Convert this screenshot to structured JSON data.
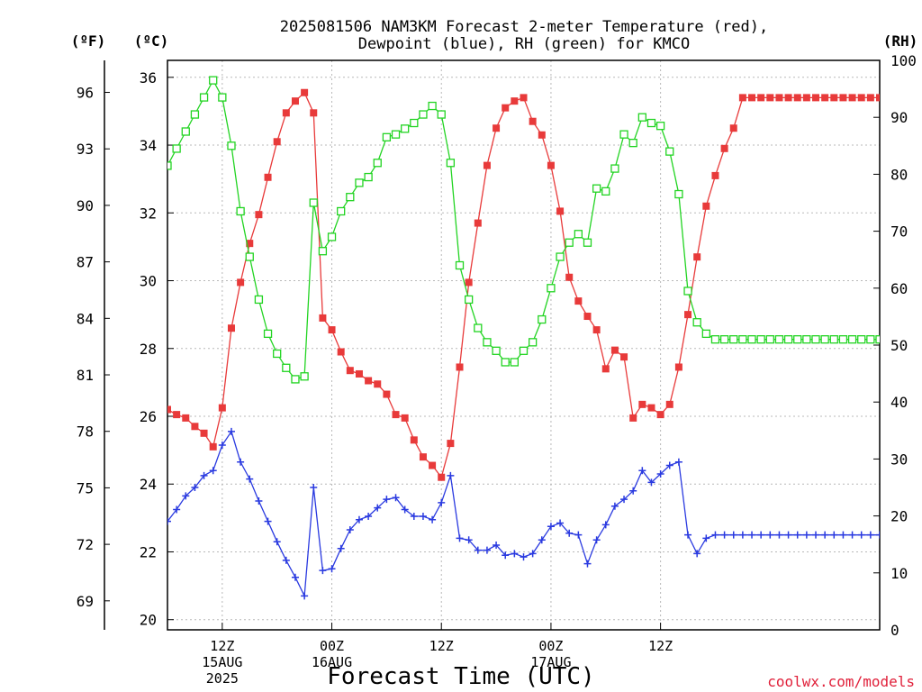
{
  "title_line1": "2025081506 NAM3KM Forecast 2-meter Temperature (red),",
  "title_line2": "Dewpoint (blue), RH (green) for KMCO",
  "unit_f": "(ºF)",
  "unit_c": "(ºC)",
  "unit_rh": "(RH)",
  "xlabel": "Forecast Time (UTC)",
  "credit": "coolwx.com/models",
  "colors": {
    "temperature": "#e83a3a",
    "dewpoint": "#2a3ae0",
    "rh": "#22d422",
    "credit": "#e0203a"
  },
  "chart_data": {
    "type": "line",
    "x_unit": "forecast hour",
    "x": [
      6,
      7,
      8,
      9,
      10,
      11,
      12,
      13,
      14,
      15,
      16,
      17,
      18,
      19,
      20,
      21,
      22,
      23,
      24,
      25,
      26,
      27,
      28,
      29,
      30,
      31,
      32,
      33,
      34,
      35,
      36,
      37,
      38,
      39,
      40,
      41,
      42,
      43,
      44,
      45,
      46,
      47,
      48,
      49,
      50,
      51,
      52,
      53,
      54,
      55,
      56,
      57,
      58,
      59,
      60,
      61,
      62,
      63,
      64,
      65,
      66,
      67,
      68,
      69,
      70,
      71,
      72,
      73,
      74,
      75,
      76,
      77,
      78,
      79,
      80,
      81,
      82,
      83,
      84
    ],
    "xlim": [
      6,
      84
    ],
    "x_ticks": [
      {
        "x": 12,
        "lines": [
          "12Z",
          "15AUG",
          "2025"
        ]
      },
      {
        "x": 24,
        "lines": [
          "00Z",
          "16AUG"
        ]
      },
      {
        "x": 36,
        "lines": [
          "12Z"
        ]
      },
      {
        "x": 48,
        "lines": [
          "00Z",
          "17AUG"
        ]
      },
      {
        "x": 60,
        "lines": [
          "12Z"
        ]
      }
    ],
    "y_left_c": {
      "range": [
        19.7,
        36.5
      ],
      "ticks": [
        20,
        22,
        24,
        26,
        28,
        30,
        32,
        34,
        36
      ]
    },
    "y_left_f": {
      "ticks": [
        69,
        72,
        75,
        78,
        81,
        84,
        87,
        90,
        93,
        96
      ]
    },
    "y_right_rh": {
      "range": [
        0,
        100
      ],
      "ticks": [
        0,
        10,
        20,
        30,
        40,
        50,
        60,
        70,
        80,
        90,
        100
      ]
    },
    "grid": true,
    "series": [
      {
        "key": "temperature",
        "axis": "c",
        "marker": "filled-square",
        "values": [
          26.2,
          26.05,
          25.95,
          25.7,
          25.5,
          25.1,
          26.25,
          28.6,
          29.95,
          31.1,
          31.95,
          33.05,
          34.1,
          34.95,
          35.3,
          35.55,
          34.95,
          28.9,
          28.55,
          27.9,
          27.35,
          27.25,
          27.05,
          26.95,
          26.65,
          26.05,
          25.95,
          25.3,
          24.8,
          24.55,
          24.2,
          25.2,
          27.45,
          29.95,
          31.7,
          33.4,
          34.5,
          35.1,
          35.3,
          35.4,
          34.7,
          34.3,
          33.4,
          32.05,
          30.1,
          29.4,
          28.95,
          28.55,
          27.4,
          27.95,
          27.75,
          25.95,
          26.35,
          26.25,
          26.05,
          26.35,
          27.45,
          29.0,
          30.7,
          32.2,
          33.1,
          33.9,
          34.5,
          35.4,
          35.4,
          35.4,
          35.4,
          35.4,
          35.4,
          35.4,
          35.4,
          35.4,
          35.4,
          35.4,
          35.4,
          35.4,
          35.4,
          35.4,
          35.4
        ]
      },
      {
        "key": "dewpoint",
        "axis": "c",
        "marker": "plus",
        "values": [
          22.9,
          23.25,
          23.65,
          23.9,
          24.25,
          24.4,
          25.15,
          25.55,
          24.65,
          24.15,
          23.5,
          22.9,
          22.3,
          21.75,
          21.25,
          20.7,
          23.9,
          21.45,
          21.5,
          22.1,
          22.65,
          22.95,
          23.05,
          23.3,
          23.55,
          23.6,
          23.25,
          23.05,
          23.05,
          22.95,
          23.45,
          24.25,
          22.4,
          22.35,
          22.05,
          22.05,
          22.2,
          21.9,
          21.95,
          21.85,
          21.95,
          22.35,
          22.75,
          22.85,
          22.55,
          22.5,
          21.65,
          22.35,
          22.8,
          23.35,
          23.55,
          23.8,
          24.4,
          24.05,
          24.3,
          24.55,
          24.65,
          22.5,
          21.95,
          22.4,
          22.5,
          22.5,
          22.5,
          22.5,
          22.5,
          22.5,
          22.5,
          22.5,
          22.5,
          22.5,
          22.5,
          22.5,
          22.5,
          22.5,
          22.5,
          22.5,
          22.5,
          22.5,
          22.5
        ]
      },
      {
        "key": "rh",
        "axis": "rh",
        "marker": "open-square",
        "values": [
          81.5,
          84.5,
          87.5,
          90.5,
          93.5,
          96.5,
          93.5,
          85,
          73.5,
          65.5,
          58,
          52,
          48.5,
          46,
          44,
          44.5,
          75,
          66.5,
          69,
          73.5,
          76,
          78.5,
          79.5,
          82,
          86.5,
          87,
          88,
          89,
          90.5,
          92,
          90.5,
          82,
          64,
          58,
          53,
          50.5,
          49,
          47,
          47,
          49,
          50.5,
          54.5,
          60,
          65.5,
          68,
          69.5,
          68,
          77.5,
          77,
          81,
          87,
          85.5,
          90,
          89,
          88.5,
          84,
          76.5,
          59.5,
          54,
          52,
          51,
          51,
          51,
          51,
          51,
          51,
          51,
          51,
          51,
          51,
          51,
          51,
          51,
          51,
          51,
          51,
          51,
          51,
          51
        ]
      }
    ]
  }
}
